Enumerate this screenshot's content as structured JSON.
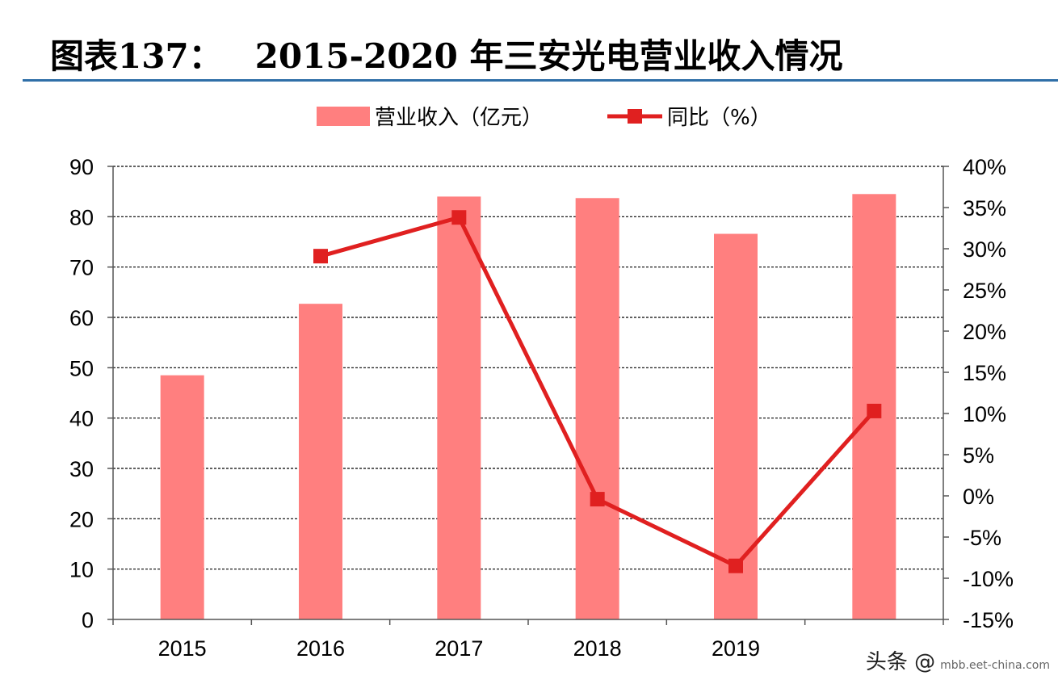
{
  "header": {
    "figure_label": "图表137：",
    "title": "2015-2020 年三安光电营业收入情况"
  },
  "colors": {
    "bar": "#ff7f7f",
    "line": "#e02020",
    "rule": "#2f6fa8"
  },
  "watermark": {
    "text": "头条 @",
    "site": "mbb.eet-china.com"
  },
  "chart_data": {
    "type": "bar",
    "categories": [
      "2015",
      "2016",
      "2017",
      "2018",
      "2019",
      ""
    ],
    "series": [
      {
        "name": "营业收入（亿元）",
        "type": "bar",
        "axis": "left",
        "values": [
          48.5,
          62.7,
          84.0,
          83.7,
          76.6,
          84.5
        ]
      },
      {
        "name": "同比（%）",
        "type": "line",
        "axis": "right",
        "values": [
          null,
          29.1,
          33.8,
          -0.4,
          -8.5,
          10.3
        ]
      }
    ],
    "left_axis": {
      "ylim": [
        0,
        90
      ],
      "ticks": [
        0,
        10,
        20,
        30,
        40,
        50,
        60,
        70,
        80,
        90
      ]
    },
    "right_axis": {
      "ylim": [
        -15,
        40
      ],
      "ticks": [
        "-15%",
        "-10%",
        "-5%",
        "0%",
        "5%",
        "10%",
        "15%",
        "20%",
        "25%",
        "30%",
        "35%",
        "40%"
      ],
      "tick_values": [
        -15,
        -10,
        -5,
        0,
        5,
        10,
        15,
        20,
        25,
        30,
        35,
        40
      ]
    },
    "legend_position": "top-center",
    "grid": true
  }
}
